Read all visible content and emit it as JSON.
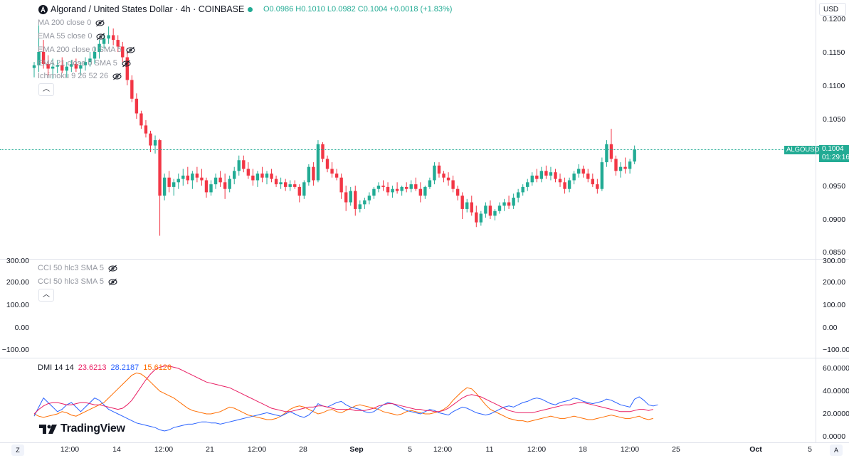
{
  "header": {
    "symbol_title": "Algorand / United States Dollar · 4h · COINBASE",
    "status_color": "#22ab94",
    "o": "O0.0986",
    "h": "H0.1010",
    "l": "L0.0982",
    "c": "C0.1004",
    "change": "+0.0018 (+1.83%)",
    "up_color": "#22ab94"
  },
  "price_axis": {
    "currency": "USD",
    "labels": [
      "0.1200",
      "0.1150",
      "0.1100",
      "0.1050",
      "0.1000",
      "0.0950",
      "0.0900",
      "0.0850"
    ],
    "last_symbol": "ALGOUSD",
    "last_price": "0.1004",
    "countdown": "01:29:16"
  },
  "main_indicators": [
    {
      "label": "MA 200 close 0"
    },
    {
      "label": "EMA 55 close 0"
    },
    {
      "label": "EMA 200 close 0 SMA 5"
    },
    {
      "label": "EMA 21 close 0 SMA 5"
    },
    {
      "label": "Ichimoku 9 26 52 26"
    }
  ],
  "cci_pane": {
    "indicators": [
      {
        "label": "CCI 50 hlc3 SMA 5"
      },
      {
        "label": "CCI 50 hlc3 SMA 5"
      }
    ],
    "labels": [
      "300.00",
      "200.00",
      "100.00",
      "0.00",
      "−100.00"
    ]
  },
  "dmi_pane": {
    "label": "DMI 14 14",
    "val_adx": "23.6213",
    "val_plus": "28.2187",
    "val_minus": "15.6126",
    "color_adx": "#e91e63",
    "color_plus": "#2962ff",
    "color_minus": "#ff6d00",
    "labels": [
      "60.0000",
      "40.0000",
      "20.0000",
      "0.0000"
    ]
  },
  "time_axis": {
    "labels": [
      "12:00",
      "14",
      "12:00",
      "21",
      "12:00",
      "28",
      "Sep",
      "5",
      "12:00",
      "11",
      "12:00",
      "18",
      "12:00",
      "25",
      "Oct",
      "5"
    ]
  },
  "footer": {
    "logo_text": "TradingView",
    "left_btn": "Z",
    "right_btn": "A"
  },
  "chart_data": {
    "type": "candlestick",
    "symbol": "ALGOUSD",
    "interval": "4h",
    "ylim": [
      0.085,
      0.121
    ],
    "candles": [
      [
        0.1126,
        0.1135,
        0.1112,
        0.113
      ],
      [
        0.113,
        0.119,
        0.112,
        0.115
      ],
      [
        0.115,
        0.1168,
        0.1125,
        0.1132
      ],
      [
        0.1132,
        0.1145,
        0.1115,
        0.1125
      ],
      [
        0.1125,
        0.114,
        0.111,
        0.1128
      ],
      [
        0.1128,
        0.1138,
        0.1118,
        0.113
      ],
      [
        0.113,
        0.1142,
        0.1118,
        0.1122
      ],
      [
        0.1122,
        0.1135,
        0.1112,
        0.1128
      ],
      [
        0.1128,
        0.1138,
        0.112,
        0.1132
      ],
      [
        0.1132,
        0.114,
        0.112,
        0.1125
      ],
      [
        0.1125,
        0.1135,
        0.1115,
        0.113
      ],
      [
        0.113,
        0.1142,
        0.1122,
        0.1135
      ],
      [
        0.1135,
        0.115,
        0.1128,
        0.114
      ],
      [
        0.114,
        0.1158,
        0.1132,
        0.115
      ],
      [
        0.115,
        0.1168,
        0.114,
        0.1162
      ],
      [
        0.1162,
        0.1178,
        0.1155,
        0.117
      ],
      [
        0.117,
        0.1188,
        0.1162,
        0.1175
      ],
      [
        0.1175,
        0.1185,
        0.116,
        0.1168
      ],
      [
        0.1168,
        0.1175,
        0.115,
        0.1158
      ],
      [
        0.1158,
        0.1165,
        0.1135,
        0.1142
      ],
      [
        0.1142,
        0.115,
        0.11,
        0.1108
      ],
      [
        0.1108,
        0.1115,
        0.1075,
        0.108
      ],
      [
        0.108,
        0.1088,
        0.105,
        0.1058
      ],
      [
        0.1058,
        0.1062,
        0.1035,
        0.104
      ],
      [
        0.104,
        0.1048,
        0.1022,
        0.1028
      ],
      [
        0.1028,
        0.1032,
        0.1,
        0.101
      ],
      [
        0.101,
        0.1025,
        0.0998,
        0.1018
      ],
      [
        0.1018,
        0.102,
        0.0875,
        0.0935
      ],
      [
        0.0935,
        0.0968,
        0.0928,
        0.0962
      ],
      [
        0.0962,
        0.0972,
        0.094,
        0.0948
      ],
      [
        0.0948,
        0.096,
        0.0935,
        0.0955
      ],
      [
        0.0955,
        0.0968,
        0.0945,
        0.096
      ],
      [
        0.096,
        0.0975,
        0.095,
        0.0965
      ],
      [
        0.0965,
        0.0978,
        0.0952,
        0.0958
      ],
      [
        0.0958,
        0.0972,
        0.0945,
        0.0968
      ],
      [
        0.0968,
        0.0978,
        0.0955,
        0.0962
      ],
      [
        0.0962,
        0.0975,
        0.095,
        0.0958
      ],
      [
        0.0958,
        0.0962,
        0.0932,
        0.094
      ],
      [
        0.094,
        0.0958,
        0.0935,
        0.0952
      ],
      [
        0.0952,
        0.0968,
        0.0945,
        0.0962
      ],
      [
        0.0962,
        0.0972,
        0.0948,
        0.0955
      ],
      [
        0.0955,
        0.0968,
        0.093,
        0.0945
      ],
      [
        0.0945,
        0.0965,
        0.094,
        0.096
      ],
      [
        0.096,
        0.0978,
        0.0952,
        0.0972
      ],
      [
        0.0972,
        0.0995,
        0.0965,
        0.0988
      ],
      [
        0.0988,
        0.0995,
        0.097,
        0.0975
      ],
      [
        0.0975,
        0.0985,
        0.096,
        0.0965
      ],
      [
        0.0965,
        0.0975,
        0.095,
        0.0958
      ],
      [
        0.0958,
        0.0972,
        0.0948,
        0.0968
      ],
      [
        0.0968,
        0.0978,
        0.0955,
        0.0962
      ],
      [
        0.0962,
        0.0972,
        0.0952,
        0.0968
      ],
      [
        0.0968,
        0.0975,
        0.0955,
        0.096
      ],
      [
        0.096,
        0.0965,
        0.0948,
        0.0952
      ],
      [
        0.0952,
        0.0962,
        0.0945,
        0.0955
      ],
      [
        0.0955,
        0.096,
        0.0942,
        0.0948
      ],
      [
        0.0948,
        0.0958,
        0.0942,
        0.0952
      ],
      [
        0.0952,
        0.0958,
        0.0945,
        0.0948
      ],
      [
        0.0948,
        0.0952,
        0.0925,
        0.0935
      ],
      [
        0.0935,
        0.0958,
        0.093,
        0.0955
      ],
      [
        0.0955,
        0.0982,
        0.095,
        0.0978
      ],
      [
        0.0978,
        0.0985,
        0.095,
        0.0958
      ],
      [
        0.0958,
        0.1018,
        0.0955,
        0.1012
      ],
      [
        0.1012,
        0.1015,
        0.0985,
        0.099
      ],
      [
        0.099,
        0.0995,
        0.097,
        0.0975
      ],
      [
        0.0975,
        0.0985,
        0.0962,
        0.0968
      ],
      [
        0.0968,
        0.0975,
        0.0958,
        0.0962
      ],
      [
        0.0962,
        0.0968,
        0.093,
        0.094
      ],
      [
        0.094,
        0.095,
        0.0912,
        0.0925
      ],
      [
        0.0925,
        0.0948,
        0.092,
        0.0942
      ],
      [
        0.0942,
        0.095,
        0.0905,
        0.0915
      ],
      [
        0.0915,
        0.0928,
        0.091,
        0.0922
      ],
      [
        0.0922,
        0.0932,
        0.0915,
        0.0928
      ],
      [
        0.0928,
        0.094,
        0.0922,
        0.0935
      ],
      [
        0.0935,
        0.0948,
        0.093,
        0.0945
      ],
      [
        0.0945,
        0.0955,
        0.094,
        0.095
      ],
      [
        0.095,
        0.0958,
        0.0942,
        0.0948
      ],
      [
        0.0948,
        0.0955,
        0.0935,
        0.094
      ],
      [
        0.094,
        0.095,
        0.0932,
        0.0945
      ],
      [
        0.0945,
        0.0955,
        0.0938,
        0.0942
      ],
      [
        0.0942,
        0.095,
        0.0935,
        0.0948
      ],
      [
        0.0948,
        0.0955,
        0.094,
        0.0945
      ],
      [
        0.0945,
        0.0958,
        0.094,
        0.0952
      ],
      [
        0.0952,
        0.0962,
        0.0942,
        0.0945
      ],
      [
        0.0945,
        0.0955,
        0.0925,
        0.0935
      ],
      [
        0.0935,
        0.095,
        0.093,
        0.0948
      ],
      [
        0.0948,
        0.0962,
        0.0945,
        0.0958
      ],
      [
        0.0958,
        0.0985,
        0.0952,
        0.098
      ],
      [
        0.098,
        0.0985,
        0.0962,
        0.0968
      ],
      [
        0.0968,
        0.0972,
        0.0955,
        0.0962
      ],
      [
        0.0962,
        0.097,
        0.095,
        0.0958
      ],
      [
        0.0958,
        0.0965,
        0.094,
        0.0945
      ],
      [
        0.0945,
        0.095,
        0.0928,
        0.0935
      ],
      [
        0.0935,
        0.094,
        0.09,
        0.0915
      ],
      [
        0.0915,
        0.093,
        0.091,
        0.0925
      ],
      [
        0.0925,
        0.0935,
        0.0905,
        0.091
      ],
      [
        0.091,
        0.092,
        0.0888,
        0.0895
      ],
      [
        0.0895,
        0.0912,
        0.089,
        0.0908
      ],
      [
        0.0908,
        0.0925,
        0.0902,
        0.092
      ],
      [
        0.092,
        0.0928,
        0.09,
        0.0905
      ],
      [
        0.0905,
        0.0915,
        0.0898,
        0.0912
      ],
      [
        0.0912,
        0.0925,
        0.0908,
        0.092
      ],
      [
        0.092,
        0.093,
        0.0912,
        0.0925
      ],
      [
        0.0925,
        0.0935,
        0.0915,
        0.092
      ],
      [
        0.092,
        0.0938,
        0.0915,
        0.0932
      ],
      [
        0.0932,
        0.0945,
        0.0925,
        0.094
      ],
      [
        0.094,
        0.0952,
        0.0935,
        0.0948
      ],
      [
        0.0948,
        0.096,
        0.0942,
        0.0955
      ],
      [
        0.0955,
        0.097,
        0.095,
        0.0965
      ],
      [
        0.0965,
        0.0975,
        0.0955,
        0.096
      ],
      [
        0.096,
        0.0978,
        0.0955,
        0.0972
      ],
      [
        0.0972,
        0.098,
        0.096,
        0.0965
      ],
      [
        0.0965,
        0.0978,
        0.0958,
        0.097
      ],
      [
        0.097,
        0.0975,
        0.0955,
        0.096
      ],
      [
        0.096,
        0.0968,
        0.0948,
        0.0955
      ],
      [
        0.0955,
        0.0962,
        0.0938,
        0.0945
      ],
      [
        0.0945,
        0.0962,
        0.094,
        0.0958
      ],
      [
        0.0958,
        0.0972,
        0.0952,
        0.0968
      ],
      [
        0.0968,
        0.0982,
        0.0962,
        0.0975
      ],
      [
        0.0975,
        0.098,
        0.0962,
        0.0968
      ],
      [
        0.0968,
        0.0975,
        0.0955,
        0.096
      ],
      [
        0.096,
        0.0968,
        0.0948,
        0.0952
      ],
      [
        0.0952,
        0.096,
        0.0938,
        0.0945
      ],
      [
        0.0945,
        0.0992,
        0.0942,
        0.0985
      ],
      [
        0.0985,
        0.1018,
        0.0978,
        0.1012
      ],
      [
        0.1012,
        0.1035,
        0.0985,
        0.099
      ],
      [
        0.099,
        0.0995,
        0.0965,
        0.0972
      ],
      [
        0.0972,
        0.0985,
        0.0962,
        0.0978
      ],
      [
        0.0978,
        0.0992,
        0.0968,
        0.0975
      ],
      [
        0.0975,
        0.099,
        0.0968,
        0.0986
      ],
      [
        0.0986,
        0.101,
        0.0982,
        0.1004
      ]
    ],
    "dmi": {
      "adx": [
        20,
        24,
        27,
        29,
        30,
        30,
        29,
        28,
        28,
        29,
        30,
        30,
        29,
        28,
        28,
        27,
        26,
        25,
        24,
        25,
        28,
        32,
        38,
        44,
        50,
        55,
        59,
        61,
        62,
        62,
        61,
        60,
        58,
        56,
        54,
        52,
        50,
        48,
        47,
        46,
        45,
        44,
        43,
        41,
        39,
        37,
        35,
        33,
        31,
        29,
        27,
        25,
        24,
        23,
        22,
        22,
        23,
        24,
        25,
        26,
        26,
        27,
        27,
        26,
        25,
        24,
        24,
        24,
        24,
        23,
        23,
        23,
        24,
        25,
        27,
        28,
        29,
        29,
        28,
        27,
        26,
        25,
        24,
        24,
        23,
        23,
        22,
        22,
        23,
        25,
        28,
        31,
        34,
        36,
        37,
        36,
        35,
        33,
        31,
        29,
        27,
        25,
        23,
        22,
        21,
        21,
        21,
        21,
        22,
        23,
        24,
        25,
        26,
        27,
        28,
        28,
        29,
        30,
        30,
        29,
        28,
        27,
        26,
        25,
        24,
        23,
        22,
        22,
        22,
        23,
        24,
        24,
        23,
        24
      ],
      "plus": [
        18,
        26,
        34,
        30,
        26,
        22,
        24,
        28,
        30,
        26,
        22,
        26,
        30,
        34,
        32,
        28,
        24,
        22,
        20,
        18,
        16,
        14,
        12,
        11,
        10,
        9,
        8,
        6,
        5,
        6,
        8,
        9,
        10,
        11,
        11,
        12,
        13,
        13,
        12,
        12,
        11,
        12,
        13,
        14,
        15,
        16,
        17,
        18,
        19,
        20,
        21,
        20,
        19,
        18,
        20,
        22,
        20,
        18,
        17,
        19,
        23,
        29,
        27,
        26,
        28,
        30,
        31,
        28,
        26,
        25,
        24,
        22,
        21,
        22,
        25,
        28,
        30,
        29,
        27,
        25,
        23,
        22,
        21,
        20,
        22,
        24,
        23,
        21,
        20,
        19,
        22,
        24,
        26,
        25,
        23,
        21,
        20,
        19,
        20,
        22,
        24,
        26,
        27,
        26,
        28,
        30,
        31,
        33,
        34,
        33,
        31,
        29,
        28,
        30,
        31,
        32,
        34,
        33,
        31,
        30,
        29,
        30,
        31,
        33,
        32,
        30,
        28,
        27,
        26,
        33,
        35,
        32,
        28,
        27,
        28
      ],
      "minus": [
        20,
        18,
        17,
        18,
        19,
        20,
        22,
        21,
        19,
        18,
        20,
        22,
        24,
        26,
        28,
        30,
        34,
        38,
        42,
        46,
        50,
        54,
        56,
        55,
        52,
        48,
        44,
        40,
        38,
        36,
        34,
        31,
        28,
        25,
        23,
        22,
        21,
        20,
        20,
        21,
        22,
        24,
        26,
        25,
        23,
        21,
        19,
        18,
        17,
        16,
        15,
        15,
        16,
        18,
        21,
        24,
        26,
        27,
        26,
        24,
        22,
        20,
        21,
        23,
        24,
        22,
        21,
        23,
        25,
        27,
        28,
        27,
        26,
        25,
        24,
        22,
        21,
        20,
        19,
        20,
        22,
        23,
        22,
        21,
        20,
        20,
        21,
        22,
        24,
        27,
        32,
        36,
        40,
        43,
        42,
        38,
        33,
        28,
        24,
        22,
        20,
        18,
        16,
        15,
        14,
        14,
        13,
        14,
        15,
        16,
        17,
        18,
        17,
        16,
        16,
        17,
        18,
        17,
        16,
        15,
        15,
        16,
        17,
        18,
        19,
        18,
        17,
        16,
        16,
        17,
        18,
        16,
        15,
        16
      ]
    }
  }
}
